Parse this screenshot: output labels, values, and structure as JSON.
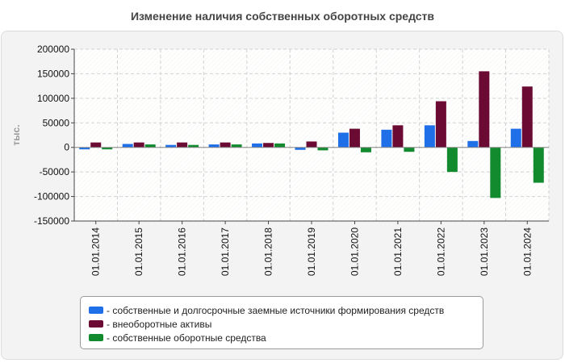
{
  "chart_data": {
    "type": "bar",
    "title": "Изменение наличия собственных оборотных средств",
    "ylabel": "тыс.",
    "xlabel": "",
    "ylim": [
      -150000,
      200000
    ],
    "yticks": [
      200000,
      150000,
      100000,
      50000,
      0,
      -50000,
      -100000,
      -150000
    ],
    "grid": true,
    "legend_position": "bottom",
    "categories": [
      "01.01.2014",
      "01.01.2015",
      "01.01.2016",
      "01.01.2017",
      "01.01.2018",
      "01.01.2019",
      "01.01.2020",
      "01.01.2021",
      "01.01.2022",
      "01.01.2023",
      "01.01.2024"
    ],
    "series": [
      {
        "name": "- собственные и долгосрочные заемные источники формирования средств",
        "color": "#1f6fe8",
        "values": [
          -4000,
          7000,
          5000,
          6000,
          8000,
          -5000,
          30000,
          36000,
          45000,
          13000,
          38000
        ]
      },
      {
        "name": "- внеоборотные активы",
        "color": "#6b0a33",
        "values": [
          10000,
          10000,
          10000,
          10000,
          9000,
          12000,
          38000,
          45000,
          94000,
          155000,
          124000
        ]
      },
      {
        "name": "- собственные оборотные средства",
        "color": "#128a2e",
        "values": [
          -4000,
          6000,
          5000,
          6000,
          8000,
          -6000,
          -10000,
          -9000,
          -50000,
          -103000,
          -72000
        ]
      }
    ]
  }
}
